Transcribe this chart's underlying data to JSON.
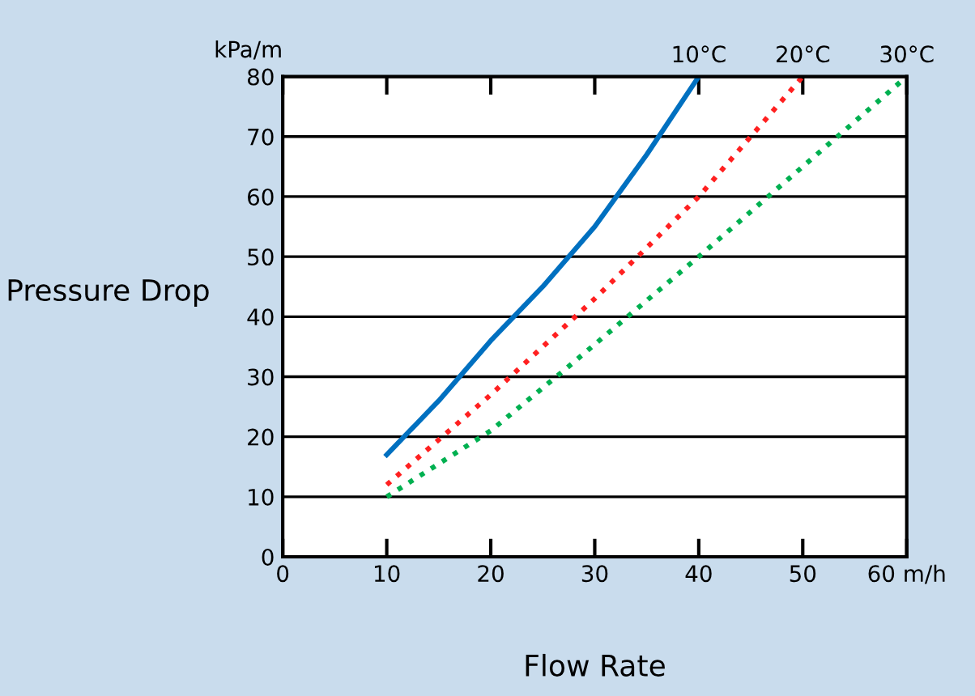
{
  "chart_data": {
    "type": "line",
    "xlabel": "Flow Rate",
    "ylabel": "Pressure Drop",
    "annotations": [
      "kPa/m"
    ],
    "xlim": [
      0,
      60
    ],
    "xticks": [
      0,
      10,
      20,
      30,
      40,
      50,
      {
        "value": 60,
        "label": "60 m/h"
      }
    ],
    "ylim": [
      0,
      80
    ],
    "yticks": [
      0,
      10,
      20,
      30,
      40,
      50,
      60,
      70,
      80
    ],
    "grid": "y",
    "legend": false,
    "marker": "none",
    "series": [
      {
        "name": "10°C",
        "color": "#0070c0",
        "line_style": "solid",
        "x": [
          10,
          15,
          20,
          25,
          30,
          35,
          40
        ],
        "values": [
          17,
          26,
          36,
          45,
          55,
          67,
          80
        ]
      },
      {
        "name": "20°C",
        "color": "#ff2020",
        "line_style": "dotted",
        "x": [
          10,
          20,
          30,
          40,
          50
        ],
        "values": [
          12,
          27,
          43,
          60,
          80
        ]
      },
      {
        "name": "30°C",
        "color": "#00b050",
        "line_style": "dotted",
        "x": [
          10,
          20,
          27,
          40,
          50,
          60
        ],
        "values": [
          10,
          21,
          31,
          50,
          65,
          80
        ]
      }
    ]
  }
}
